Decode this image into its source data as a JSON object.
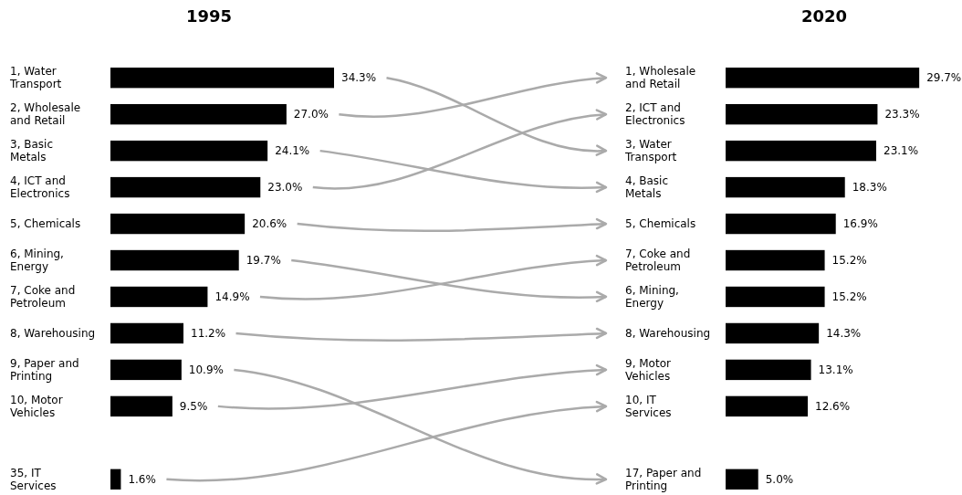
{
  "chart_data": [
    {
      "type": "bar",
      "orientation": "horizontal",
      "title": "1995",
      "color": "#000000",
      "categories": [
        "1, Water Transport",
        "2, Wholesale and Retail",
        "3, Basic Metals",
        "4, ICT and Electronics",
        "5, Chemicals",
        "6, Mining, Energy",
        "7, Coke and Petroleum",
        "8, Warehousing",
        "9, Paper and Printing",
        "10, Motor Vehicles",
        null,
        "35, IT Services"
      ],
      "values": [
        34.3,
        27.0,
        24.1,
        23.0,
        20.6,
        19.7,
        14.9,
        11.2,
        10.9,
        9.5,
        null,
        1.6
      ],
      "value_labels": [
        "34.3%",
        "27.0%",
        "24.1%",
        "23.0%",
        "20.6%",
        "19.7%",
        "14.9%",
        "11.2%",
        "10.9%",
        "9.5%",
        null,
        "1.6%"
      ]
    },
    {
      "type": "bar",
      "orientation": "horizontal",
      "title": "2020",
      "color": "#000000",
      "categories": [
        "1, Wholesale and Retail",
        "2, ICT and Electronics",
        "3, Water Transport",
        "4, Basic Metals",
        "5, Chemicals",
        "7, Coke and Petroleum",
        "6, Mining, Energy",
        "8, Warehousing",
        "9, Motor Vehicles",
        "10, IT Services",
        null,
        "17, Paper and Printing"
      ],
      "values": [
        29.7,
        23.3,
        23.1,
        18.3,
        16.9,
        15.2,
        15.2,
        14.3,
        13.1,
        12.6,
        null,
        5.0
      ],
      "value_labels": [
        "29.7%",
        "23.3%",
        "23.1%",
        "18.3%",
        "16.9%",
        "15.2%",
        "15.2%",
        "14.3%",
        "13.1%",
        "12.6%",
        null,
        "5.0%"
      ]
    }
  ]
}
